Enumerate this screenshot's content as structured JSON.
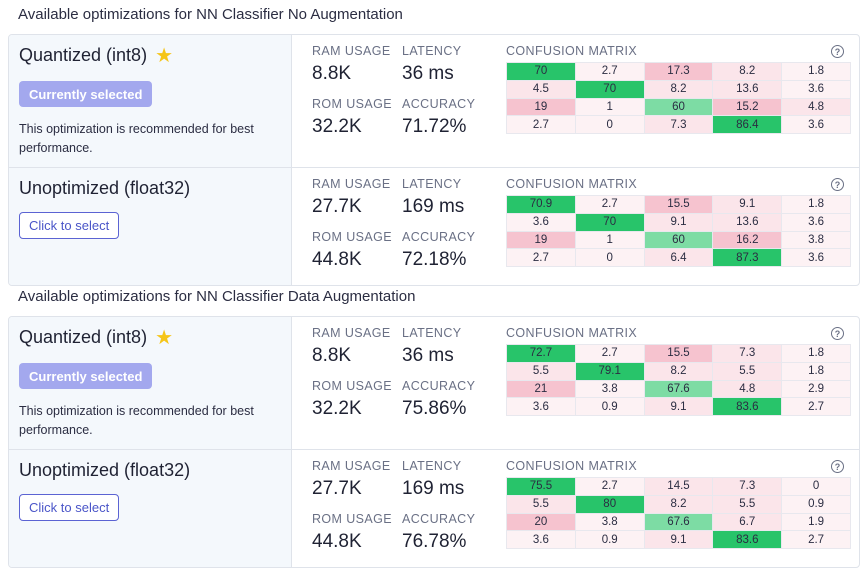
{
  "sections": [
    {
      "title": "Available optimizations for NN Classifier No Augmentation",
      "rows": [
        {
          "name": "Quantized (int8)",
          "starred": true,
          "selected": true,
          "button_label": "Currently selected",
          "note": "This optimization is recommended for best performance.",
          "ram_label": "RAM USAGE",
          "ram": "8.8K",
          "latency_label": "LATENCY",
          "latency": "36 ms",
          "rom_label": "ROM USAGE",
          "rom": "32.2K",
          "accuracy_label": "ACCURACY",
          "accuracy": "71.72%",
          "cm_label": "CONFUSION MATRIX",
          "matrix": [
            [
              "70",
              "2.7",
              "17.3",
              "8.2",
              "1.8"
            ],
            [
              "4.5",
              "70",
              "8.2",
              "13.6",
              "3.6"
            ],
            [
              "19",
              "1",
              "60",
              "15.2",
              "4.8"
            ],
            [
              "2.7",
              "0",
              "7.3",
              "86.4",
              "3.6"
            ]
          ]
        },
        {
          "name": "Unoptimized (float32)",
          "starred": false,
          "selected": false,
          "button_label": "Click to select",
          "note": "",
          "ram_label": "RAM USAGE",
          "ram": "27.7K",
          "latency_label": "LATENCY",
          "latency": "169 ms",
          "rom_label": "ROM USAGE",
          "rom": "44.8K",
          "accuracy_label": "ACCURACY",
          "accuracy": "72.18%",
          "cm_label": "CONFUSION MATRIX",
          "matrix": [
            [
              "70.9",
              "2.7",
              "15.5",
              "9.1",
              "1.8"
            ],
            [
              "3.6",
              "70",
              "9.1",
              "13.6",
              "3.6"
            ],
            [
              "19",
              "1",
              "60",
              "16.2",
              "3.8"
            ],
            [
              "2.7",
              "0",
              "6.4",
              "87.3",
              "3.6"
            ]
          ]
        }
      ]
    },
    {
      "title": "Available optimizations for NN Classifier Data Augmentation",
      "rows": [
        {
          "name": "Quantized (int8)",
          "starred": true,
          "selected": true,
          "button_label": "Currently selected",
          "note": "This optimization is recommended for best performance.",
          "ram_label": "RAM USAGE",
          "ram": "8.8K",
          "latency_label": "LATENCY",
          "latency": "36 ms",
          "rom_label": "ROM USAGE",
          "rom": "32.2K",
          "accuracy_label": "ACCURACY",
          "accuracy": "75.86%",
          "cm_label": "CONFUSION MATRIX",
          "matrix": [
            [
              "72.7",
              "2.7",
              "15.5",
              "7.3",
              "1.8"
            ],
            [
              "5.5",
              "79.1",
              "8.2",
              "5.5",
              "1.8"
            ],
            [
              "21",
              "3.8",
              "67.6",
              "4.8",
              "2.9"
            ],
            [
              "3.6",
              "0.9",
              "9.1",
              "83.6",
              "2.7"
            ]
          ]
        },
        {
          "name": "Unoptimized (float32)",
          "starred": false,
          "selected": false,
          "button_label": "Click to select",
          "note": "",
          "ram_label": "RAM USAGE",
          "ram": "27.7K",
          "latency_label": "LATENCY",
          "latency": "169 ms",
          "rom_label": "ROM USAGE",
          "rom": "44.8K",
          "accuracy_label": "ACCURACY",
          "accuracy": "76.78%",
          "cm_label": "CONFUSION MATRIX",
          "matrix": [
            [
              "75.5",
              "2.7",
              "14.5",
              "7.3",
              "0"
            ],
            [
              "5.5",
              "80",
              "8.2",
              "5.5",
              "0.9"
            ],
            [
              "20",
              "3.8",
              "67.6",
              "6.7",
              "1.9"
            ],
            [
              "3.6",
              "0.9",
              "9.1",
              "83.6",
              "2.7"
            ]
          ]
        }
      ]
    }
  ],
  "colors": {
    "diag_strong": "#28c46a",
    "diag_medium": "#7ddca4",
    "offdiag_strong": "#f6c3cf",
    "offdiag_light": "#fbe5ea",
    "offdiag_faint": "#fdf2f4",
    "neutral": "#ffffff"
  },
  "icons": {
    "star": "star-icon",
    "help": "help-circle-icon"
  }
}
